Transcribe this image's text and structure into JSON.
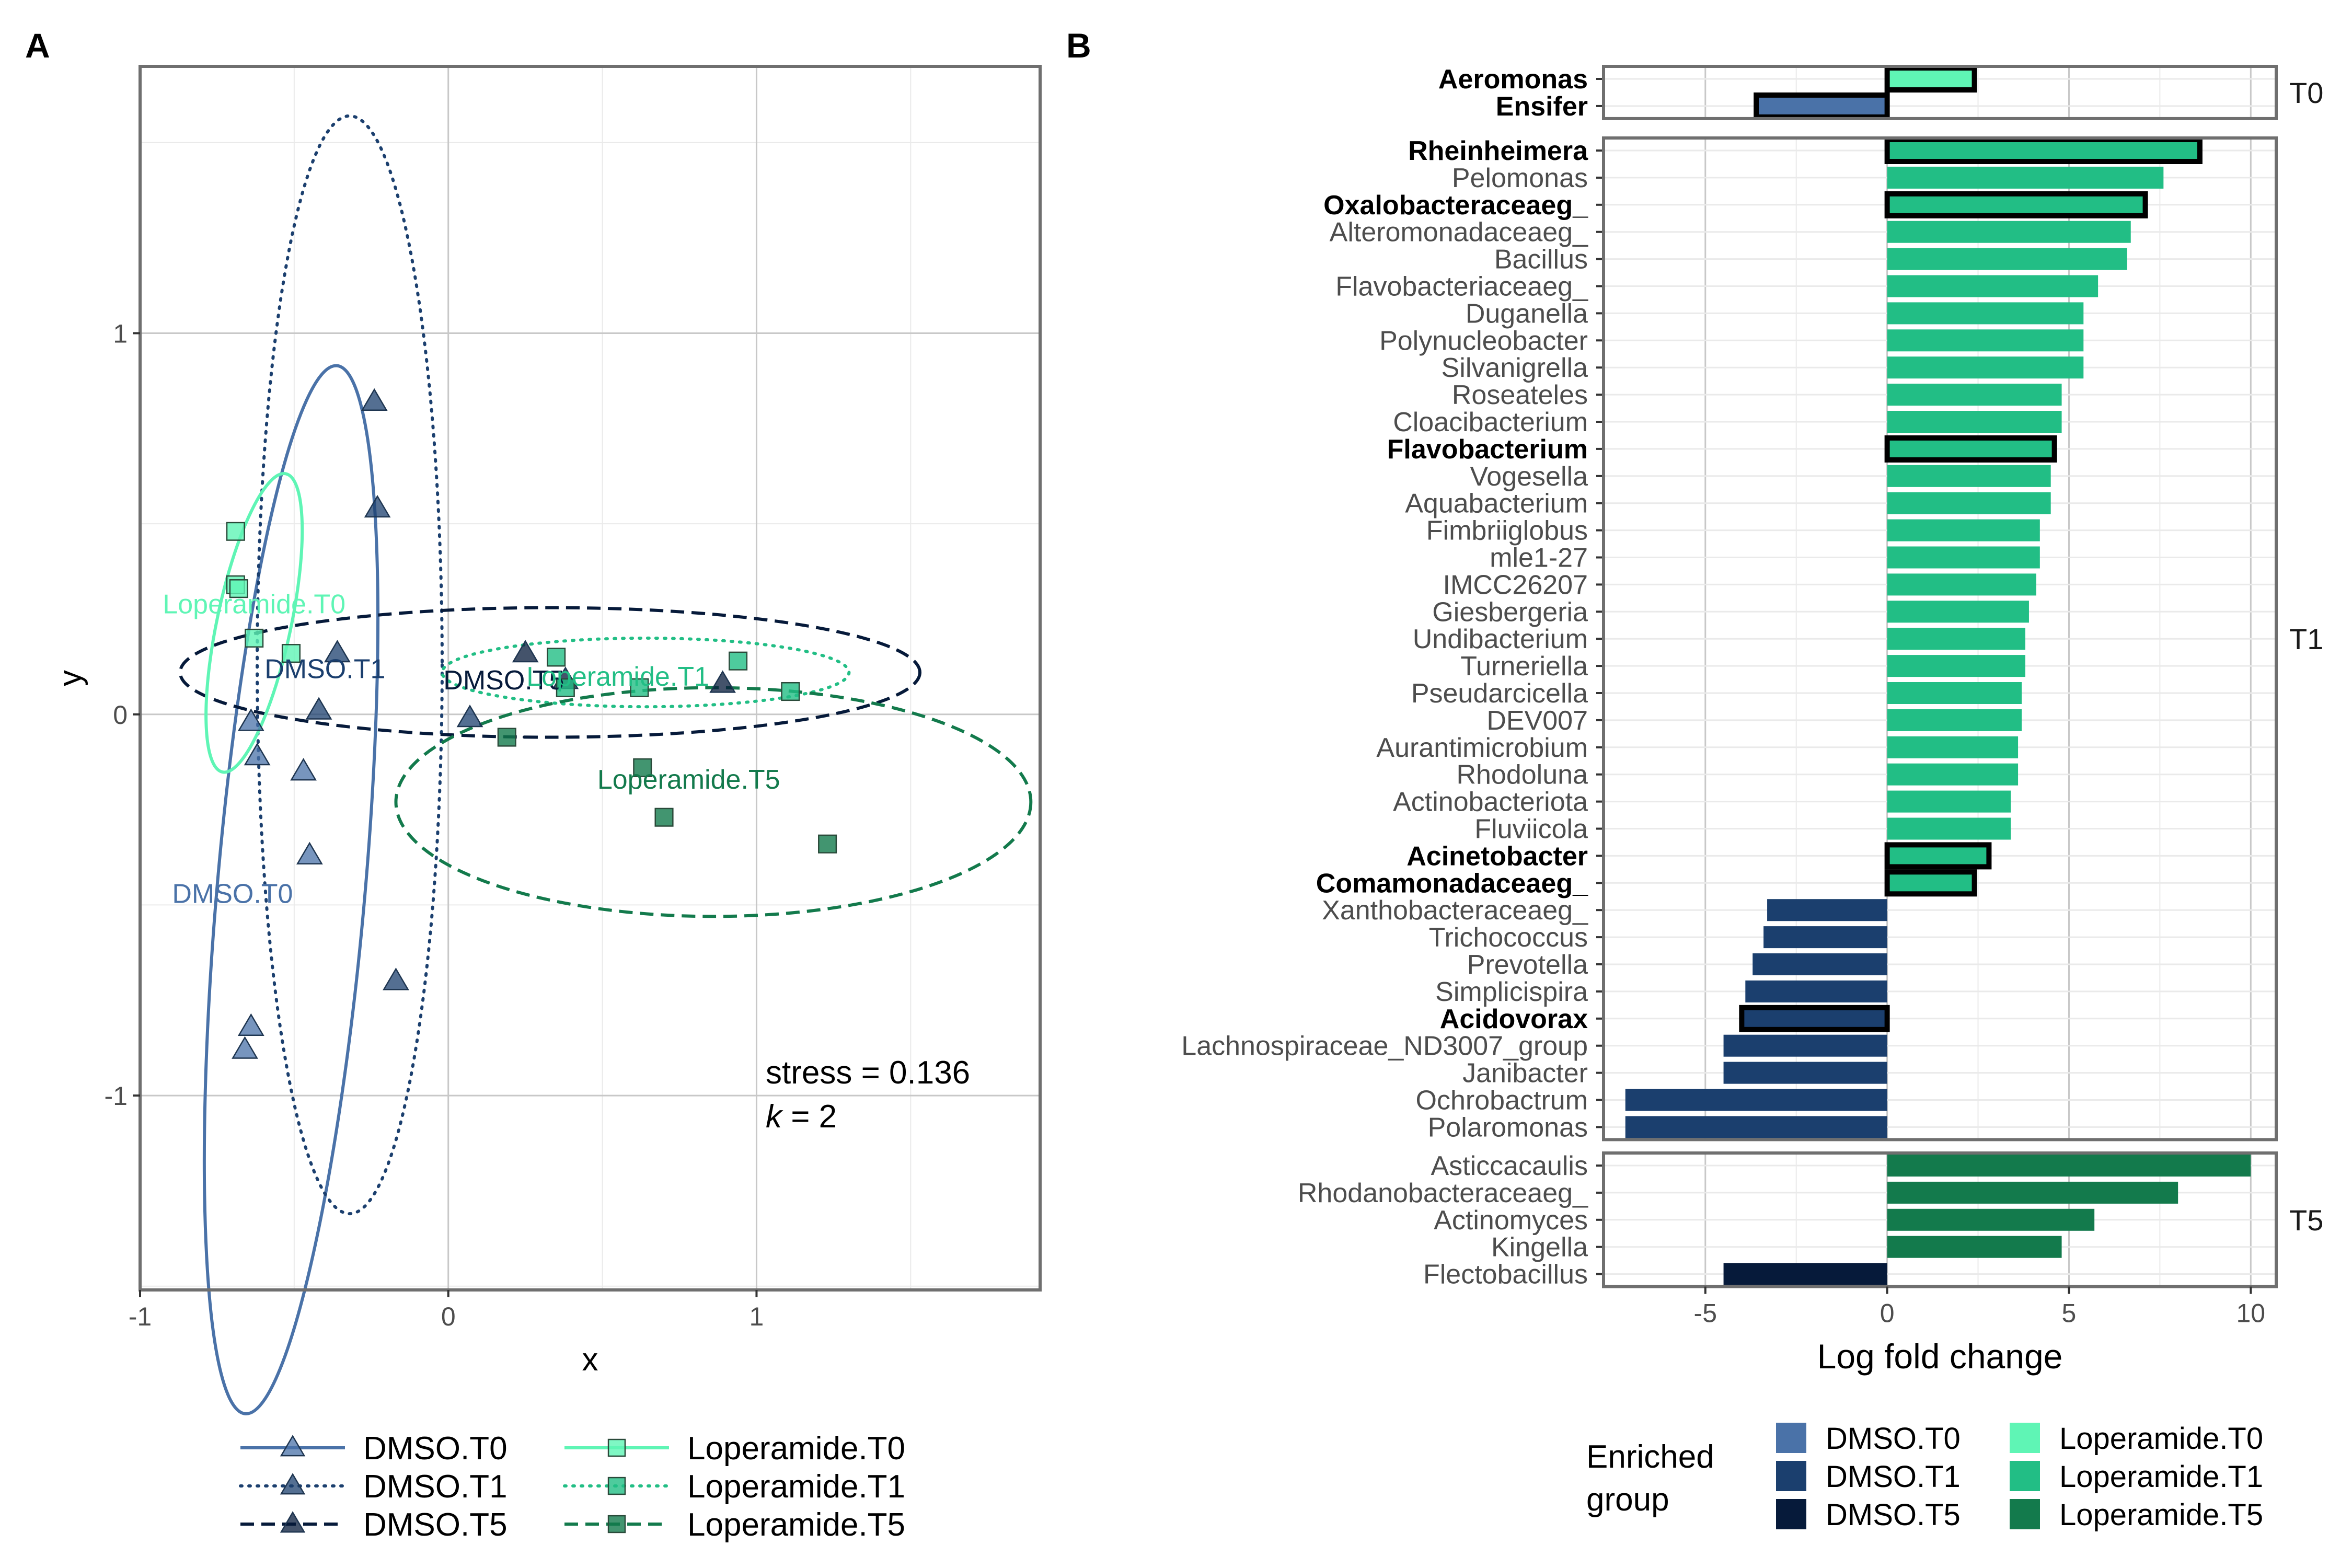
{
  "colors": {
    "DMSO.T0": "#4A72A8",
    "DMSO.T1": "#1B3F6E",
    "DMSO.T5": "#061A3A",
    "Loperamide.T0": "#5FF5B5",
    "Loperamide.T1": "#22BE85",
    "Loperamide.T5": "#137A4C",
    "panel_border": "#6F6F6F",
    "grid_major": "#C8C8C8",
    "grid_minor": "#EAEAEA"
  },
  "chart_data": [
    {
      "type": "scatter",
      "panel_label": "A",
      "xlabel": "x",
      "ylabel": "y",
      "xlim": [
        -1.0,
        1.92
      ],
      "ylim": [
        -1.51,
        1.7
      ],
      "xticks": [
        -1,
        0,
        1
      ],
      "yticks": [
        -1,
        0,
        1
      ],
      "annotation": {
        "stress": "stress = 0.136",
        "k_italic": "k",
        "k_rest": " = 2"
      },
      "groups": [
        {
          "name": "DMSO.T0",
          "marker": "triangle",
          "line": "solid",
          "points": [
            [
              -0.64,
              -0.02
            ],
            [
              -0.62,
              -0.11
            ],
            [
              -0.47,
              -0.15
            ],
            [
              -0.45,
              -0.37
            ],
            [
              -0.64,
              -0.82
            ],
            [
              -0.66,
              -0.88
            ]
          ],
          "ellipse": {
            "cx": -0.51,
            "cy": -0.46,
            "rx": 0.24,
            "ry": 1.38,
            "angle_deg": 5
          },
          "label": "DMSO.T0",
          "label_pos": [
            -0.7,
            -0.47
          ]
        },
        {
          "name": "DMSO.T1",
          "marker": "triangle",
          "line": "dotted",
          "points": [
            [
              -0.24,
              0.82
            ],
            [
              -0.23,
              0.54
            ],
            [
              -0.36,
              0.16
            ],
            [
              -0.42,
              0.01
            ],
            [
              -0.17,
              -0.7
            ],
            [
              0.07,
              -0.01
            ]
          ],
          "ellipse": {
            "cx": -0.32,
            "cy": 0.13,
            "rx": 0.3,
            "ry": 1.44,
            "angle_deg": 0
          },
          "label": "DMSO.T1",
          "label_pos": [
            -0.4,
            0.12
          ]
        },
        {
          "name": "DMSO.T5",
          "marker": "triangle",
          "line": "dashed",
          "points": [
            [
              0.25,
              0.16
            ],
            [
              0.38,
              0.09
            ],
            [
              0.89,
              0.08
            ]
          ],
          "ellipse": {
            "cx": 0.33,
            "cy": 0.11,
            "rx": 1.2,
            "ry": 0.17,
            "angle_deg": 0
          },
          "label": "DMSO.T5",
          "label_pos": [
            0.18,
            0.09
          ]
        },
        {
          "name": "Loperamide.T0",
          "marker": "square",
          "line": "solid",
          "points": [
            [
              -0.69,
              0.48
            ],
            [
              -0.69,
              0.34
            ],
            [
              -0.68,
              0.33
            ],
            [
              -0.63,
              0.2
            ],
            [
              -0.51,
              0.16
            ]
          ],
          "ellipse": {
            "cx": -0.63,
            "cy": 0.24,
            "rx": 0.12,
            "ry": 0.4,
            "angle_deg": 12
          },
          "label": "Loperamide.T0",
          "label_pos": [
            -0.63,
            0.29
          ]
        },
        {
          "name": "Loperamide.T1",
          "marker": "square",
          "line": "dotted",
          "points": [
            [
              0.35,
              0.15
            ],
            [
              0.38,
              0.07
            ],
            [
              0.62,
              0.07
            ],
            [
              0.94,
              0.14
            ],
            [
              1.11,
              0.06
            ]
          ],
          "ellipse": {
            "cx": 0.64,
            "cy": 0.11,
            "rx": 0.66,
            "ry": 0.09,
            "angle_deg": 0
          },
          "label": "Loperamide.T1",
          "label_pos": [
            0.55,
            0.1
          ]
        },
        {
          "name": "Loperamide.T5",
          "marker": "square",
          "line": "dashed",
          "points": [
            [
              0.19,
              -0.06
            ],
            [
              0.63,
              -0.14
            ],
            [
              0.7,
              -0.27
            ],
            [
              1.23,
              -0.34
            ]
          ],
          "ellipse": {
            "cx": 0.86,
            "cy": -0.23,
            "rx": 1.03,
            "ry": 0.3,
            "angle_deg": 0
          },
          "label": "Loperamide.T5",
          "label_pos": [
            0.78,
            -0.17
          ]
        }
      ],
      "legend": {
        "position": "bottom",
        "entries": [
          "DMSO.T0",
          "DMSO.T1",
          "DMSO.T5",
          "Loperamide.T0",
          "Loperamide.T1",
          "Loperamide.T5"
        ]
      }
    },
    {
      "type": "bar",
      "orientation": "horizontal",
      "panel_label": "B",
      "xlabel": "Log fold change",
      "xlim": [
        -7.8,
        10.7
      ],
      "xticks": [
        -5,
        0,
        5,
        10
      ],
      "facets": [
        {
          "name": "T0",
          "rows": [
            {
              "label": "Aeromonas",
              "value": 2.4,
              "group": "Loperamide.T0",
              "bold": true
            },
            {
              "label": "Ensifer",
              "value": -3.6,
              "group": "DMSO.T0",
              "bold": true
            }
          ]
        },
        {
          "name": "T1",
          "rows": [
            {
              "label": "Rheinheimera",
              "value": 8.6,
              "group": "Loperamide.T1",
              "bold": true
            },
            {
              "label": "Pelomonas",
              "value": 7.6,
              "group": "Loperamide.T1",
              "bold": false
            },
            {
              "label": "Oxalobacteraceaeg_",
              "value": 7.1,
              "group": "Loperamide.T1",
              "bold": true
            },
            {
              "label": "Alteromonadaceaeg_",
              "value": 6.7,
              "group": "Loperamide.T1",
              "bold": false
            },
            {
              "label": "Bacillus",
              "value": 6.6,
              "group": "Loperamide.T1",
              "bold": false
            },
            {
              "label": "Flavobacteriaceaeg_",
              "value": 5.8,
              "group": "Loperamide.T1",
              "bold": false
            },
            {
              "label": "Duganella",
              "value": 5.4,
              "group": "Loperamide.T1",
              "bold": false
            },
            {
              "label": "Polynucleobacter",
              "value": 5.4,
              "group": "Loperamide.T1",
              "bold": false
            },
            {
              "label": "Silvanigrella",
              "value": 5.4,
              "group": "Loperamide.T1",
              "bold": false
            },
            {
              "label": "Roseateles",
              "value": 4.8,
              "group": "Loperamide.T1",
              "bold": false
            },
            {
              "label": "Cloacibacterium",
              "value": 4.8,
              "group": "Loperamide.T1",
              "bold": false
            },
            {
              "label": "Flavobacterium",
              "value": 4.6,
              "group": "Loperamide.T1",
              "bold": true
            },
            {
              "label": "Vogesella",
              "value": 4.5,
              "group": "Loperamide.T1",
              "bold": false
            },
            {
              "label": "Aquabacterium",
              "value": 4.5,
              "group": "Loperamide.T1",
              "bold": false
            },
            {
              "label": "Fimbriiglobus",
              "value": 4.2,
              "group": "Loperamide.T1",
              "bold": false
            },
            {
              "label": "mle1-27",
              "value": 4.2,
              "group": "Loperamide.T1",
              "bold": false
            },
            {
              "label": "IMCC26207",
              "value": 4.1,
              "group": "Loperamide.T1",
              "bold": false
            },
            {
              "label": "Giesbergeria",
              "value": 3.9,
              "group": "Loperamide.T1",
              "bold": false
            },
            {
              "label": "Undibacterium",
              "value": 3.8,
              "group": "Loperamide.T1",
              "bold": false
            },
            {
              "label": "Turneriella",
              "value": 3.8,
              "group": "Loperamide.T1",
              "bold": false
            },
            {
              "label": "Pseudarcicella",
              "value": 3.7,
              "group": "Loperamide.T1",
              "bold": false
            },
            {
              "label": "DEV007",
              "value": 3.7,
              "group": "Loperamide.T1",
              "bold": false
            },
            {
              "label": "Aurantimicrobium",
              "value": 3.6,
              "group": "Loperamide.T1",
              "bold": false
            },
            {
              "label": "Rhodoluna",
              "value": 3.6,
              "group": "Loperamide.T1",
              "bold": false
            },
            {
              "label": "Actinobacteriota",
              "value": 3.4,
              "group": "Loperamide.T1",
              "bold": false
            },
            {
              "label": "Fluviicola",
              "value": 3.4,
              "group": "Loperamide.T1",
              "bold": false
            },
            {
              "label": "Acinetobacter",
              "value": 2.8,
              "group": "Loperamide.T1",
              "bold": true
            },
            {
              "label": "Comamonadaceaeg_",
              "value": 2.4,
              "group": "Loperamide.T1",
              "bold": true
            },
            {
              "label": "Xanthobacteraceaeg_",
              "value": -3.3,
              "group": "DMSO.T1",
              "bold": false
            },
            {
              "label": "Trichococcus",
              "value": -3.4,
              "group": "DMSO.T1",
              "bold": false
            },
            {
              "label": "Prevotella",
              "value": -3.7,
              "group": "DMSO.T1",
              "bold": false
            },
            {
              "label": "Simplicispira",
              "value": -3.9,
              "group": "DMSO.T1",
              "bold": false
            },
            {
              "label": "Acidovorax",
              "value": -4.0,
              "group": "DMSO.T1",
              "bold": true
            },
            {
              "label": "Lachnospiraceae_ND3007_group",
              "value": -4.5,
              "group": "DMSO.T1",
              "bold": false
            },
            {
              "label": "Janibacter",
              "value": -4.5,
              "group": "DMSO.T1",
              "bold": false
            },
            {
              "label": "Ochrobactrum",
              "value": -7.2,
              "group": "DMSO.T1",
              "bold": false
            },
            {
              "label": "Polaromonas",
              "value": -7.2,
              "group": "DMSO.T1",
              "bold": false
            }
          ]
        },
        {
          "name": "T5",
          "rows": [
            {
              "label": "Asticcacaulis",
              "value": 10.0,
              "group": "Loperamide.T5",
              "bold": false
            },
            {
              "label": "Rhodanobacteraceaeg_",
              "value": 8.0,
              "group": "Loperamide.T5",
              "bold": false
            },
            {
              "label": "Actinomyces",
              "value": 5.7,
              "group": "Loperamide.T5",
              "bold": false
            },
            {
              "label": "Kingella",
              "value": 4.8,
              "group": "Loperamide.T5",
              "bold": false
            },
            {
              "label": "Flectobacillus",
              "value": -4.5,
              "group": "DMSO.T5",
              "bold": false
            }
          ]
        }
      ],
      "legend": {
        "title": [
          "Enriched",
          "group"
        ],
        "position": "bottom",
        "entries": [
          "DMSO.T0",
          "DMSO.T1",
          "DMSO.T5",
          "Loperamide.T0",
          "Loperamide.T1",
          "Loperamide.T5"
        ]
      }
    }
  ]
}
